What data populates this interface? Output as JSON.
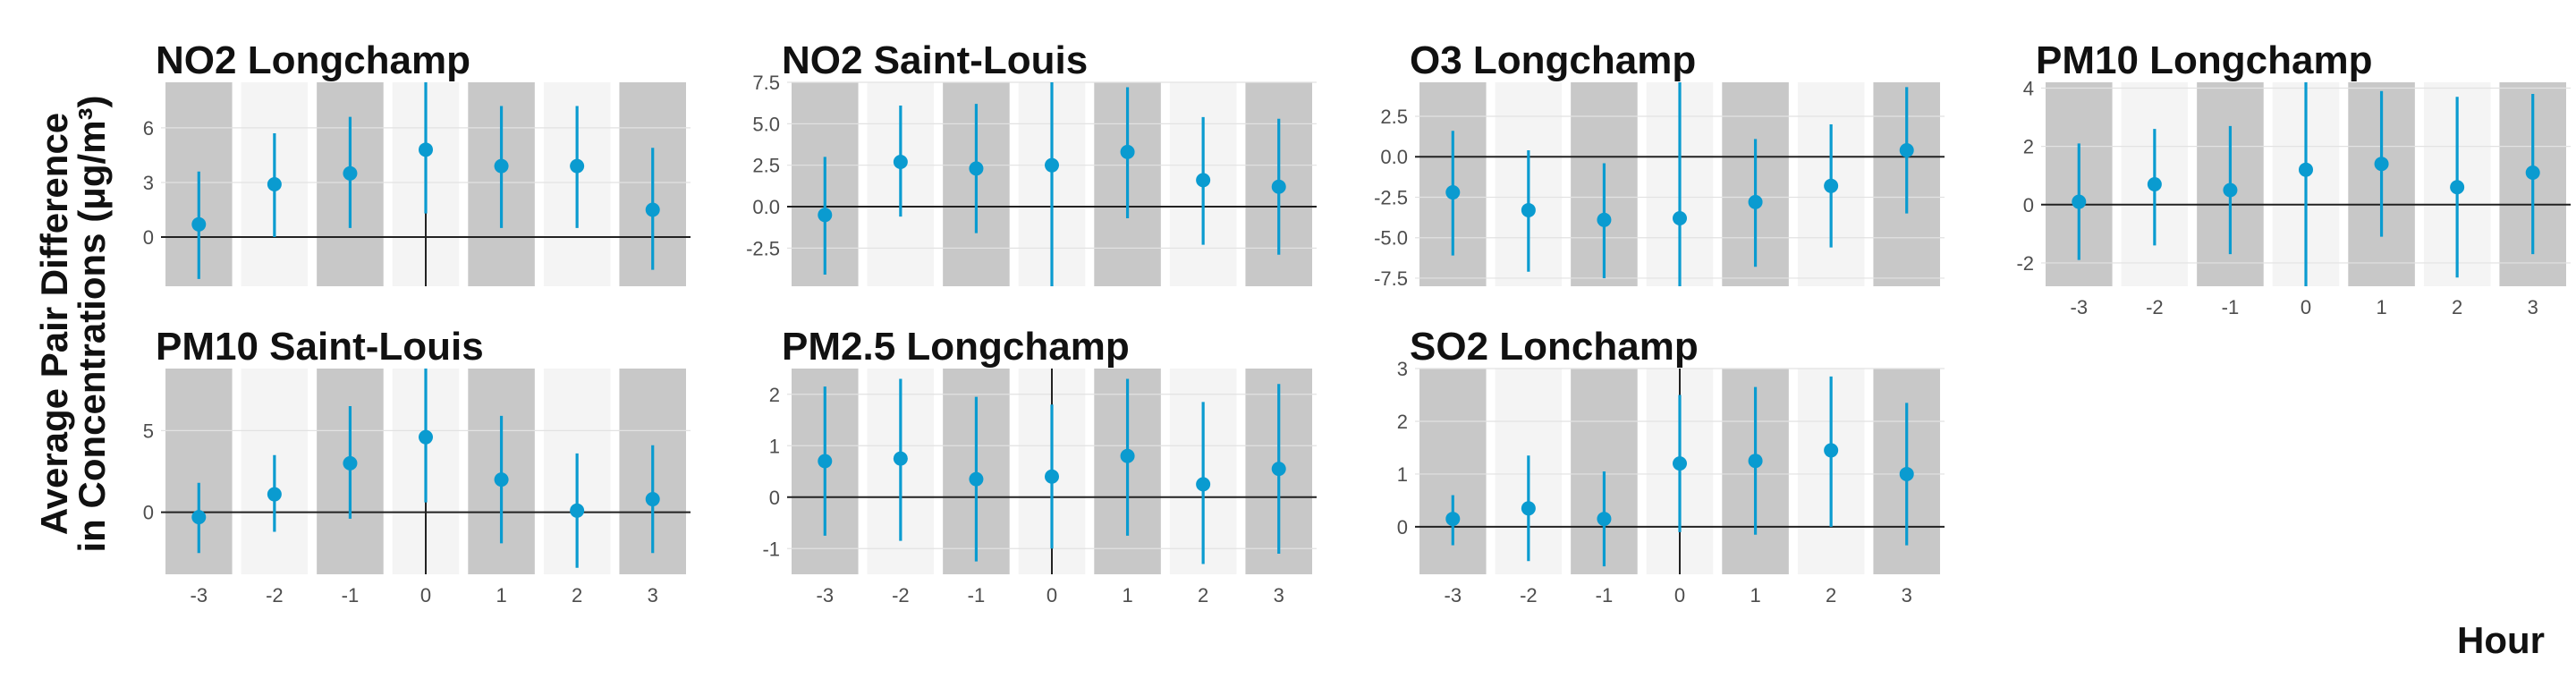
{
  "chart_data": {
    "type": "scatter",
    "ylabel_lines": [
      "Average Pair Difference",
      "in Concentrations (μg/m³)"
    ],
    "xlabel": "Hour",
    "x_ticks": [
      "-3",
      "-2",
      "-1",
      "0",
      "1",
      "2",
      "3"
    ],
    "colors": {
      "point": "#0a9bd0",
      "band_dark": "#c8c8c8",
      "band_light": "#f4f4f4",
      "grid": "#e2e2e2",
      "axis": "#222222"
    },
    "panels": [
      {
        "title": "NO2 Longchamp",
        "ylim": [
          -2.7,
          8.5
        ],
        "yticks": [
          0,
          3,
          6
        ],
        "ytick_labels": [
          "0",
          "3",
          "6"
        ],
        "x": [
          -3,
          -2,
          -1,
          0,
          1,
          2,
          3
        ],
        "y": [
          0.7,
          2.9,
          3.5,
          4.8,
          3.9,
          3.9,
          1.5
        ],
        "lower": [
          -2.3,
          0.0,
          0.5,
          1.3,
          0.5,
          0.5,
          -1.8
        ],
        "upper": [
          3.6,
          5.7,
          6.6,
          8.5,
          7.2,
          7.2,
          4.9
        ],
        "xaxis_labels": false
      },
      {
        "title": "NO2 Saint-Louis",
        "ylim": [
          -4.8,
          7.5
        ],
        "yticks": [
          -2.5,
          0,
          2.5,
          5,
          7.5
        ],
        "ytick_labels": [
          "-2.5",
          "0.0",
          "2.5",
          "5.0",
          "7.5"
        ],
        "x": [
          -3,
          -2,
          -1,
          0,
          1,
          2,
          3
        ],
        "y": [
          -0.5,
          2.7,
          2.3,
          2.5,
          3.3,
          1.6,
          1.2
        ],
        "lower": [
          -4.1,
          -0.6,
          -1.6,
          -4.8,
          -0.7,
          -2.3,
          -2.9
        ],
        "upper": [
          3.0,
          6.1,
          6.2,
          7.5,
          7.2,
          5.4,
          5.3
        ],
        "xaxis_labels": false
      },
      {
        "title": "O3 Longchamp",
        "ylim": [
          -8.0,
          4.6
        ],
        "yticks": [
          -7.5,
          -5,
          -2.5,
          0,
          2.5
        ],
        "ytick_labels": [
          "-7.5",
          "-5.0",
          "-2.5",
          "0.0",
          "2.5"
        ],
        "x": [
          -3,
          -2,
          -1,
          0,
          1,
          2,
          3
        ],
        "y": [
          -2.2,
          -3.3,
          -3.9,
          -3.8,
          -2.8,
          -1.8,
          0.4
        ],
        "lower": [
          -6.1,
          -7.1,
          -7.5,
          -8.0,
          -6.8,
          -5.6,
          -3.5
        ],
        "upper": [
          1.6,
          0.4,
          -0.4,
          4.6,
          1.1,
          2.0,
          4.3
        ],
        "xaxis_labels": false
      },
      {
        "title": "PM10 Longchamp",
        "ylim": [
          -2.8,
          4.2
        ],
        "yticks": [
          -2,
          0,
          2,
          4
        ],
        "ytick_labels": [
          "-2",
          "0",
          "2",
          "4"
        ],
        "x": [
          -3,
          -2,
          -1,
          0,
          1,
          2,
          3
        ],
        "y": [
          0.1,
          0.7,
          0.5,
          1.2,
          1.4,
          0.6,
          1.1
        ],
        "lower": [
          -1.9,
          -1.4,
          -1.7,
          -2.8,
          -1.1,
          -2.5,
          -1.7
        ],
        "upper": [
          2.1,
          2.6,
          2.7,
          4.2,
          3.9,
          3.7,
          3.8
        ],
        "xaxis_labels": true
      },
      {
        "title": "PM10 Saint-Louis",
        "ylim": [
          -3.8,
          8.8
        ],
        "yticks": [
          0,
          5
        ],
        "ytick_labels": [
          "0",
          "5"
        ],
        "x": [
          -3,
          -2,
          -1,
          0,
          1,
          2,
          3
        ],
        "y": [
          -0.3,
          1.1,
          3.0,
          4.6,
          2.0,
          0.1,
          0.8
        ],
        "lower": [
          -2.5,
          -1.2,
          -0.4,
          0.6,
          -1.9,
          -3.4,
          -2.5
        ],
        "upper": [
          1.8,
          3.5,
          6.5,
          8.8,
          5.9,
          3.6,
          4.1
        ],
        "xaxis_labels": true
      },
      {
        "title": "PM2.5 Longchamp",
        "ylim": [
          -1.5,
          2.5
        ],
        "yticks": [
          -1,
          0,
          1,
          2
        ],
        "ytick_labels": [
          "-1",
          "0",
          "1",
          "2"
        ],
        "x": [
          -3,
          -2,
          -1,
          0,
          1,
          2,
          3
        ],
        "y": [
          0.7,
          0.75,
          0.35,
          0.4,
          0.8,
          0.25,
          0.55
        ],
        "lower": [
          -0.75,
          -0.85,
          -1.25,
          -1.0,
          -0.75,
          -1.3,
          -1.1
        ],
        "upper": [
          2.15,
          2.3,
          1.95,
          1.8,
          2.3,
          1.85,
          2.2
        ],
        "xaxis_labels": true
      },
      {
        "title": "SO2 Lonchamp",
        "ylim": [
          -0.9,
          3.0
        ],
        "yticks": [
          0,
          1,
          2,
          3
        ],
        "ytick_labels": [
          "0",
          "1",
          "2",
          "3"
        ],
        "x": [
          -3,
          -2,
          -1,
          0,
          1,
          2,
          3
        ],
        "y": [
          0.15,
          0.35,
          0.15,
          1.2,
          1.25,
          1.45,
          1.0
        ],
        "lower": [
          -0.35,
          -0.65,
          -0.75,
          -0.1,
          -0.15,
          0.0,
          -0.35
        ],
        "upper": [
          0.6,
          1.35,
          1.05,
          2.5,
          2.65,
          2.85,
          2.35
        ],
        "xaxis_labels": true
      }
    ]
  }
}
